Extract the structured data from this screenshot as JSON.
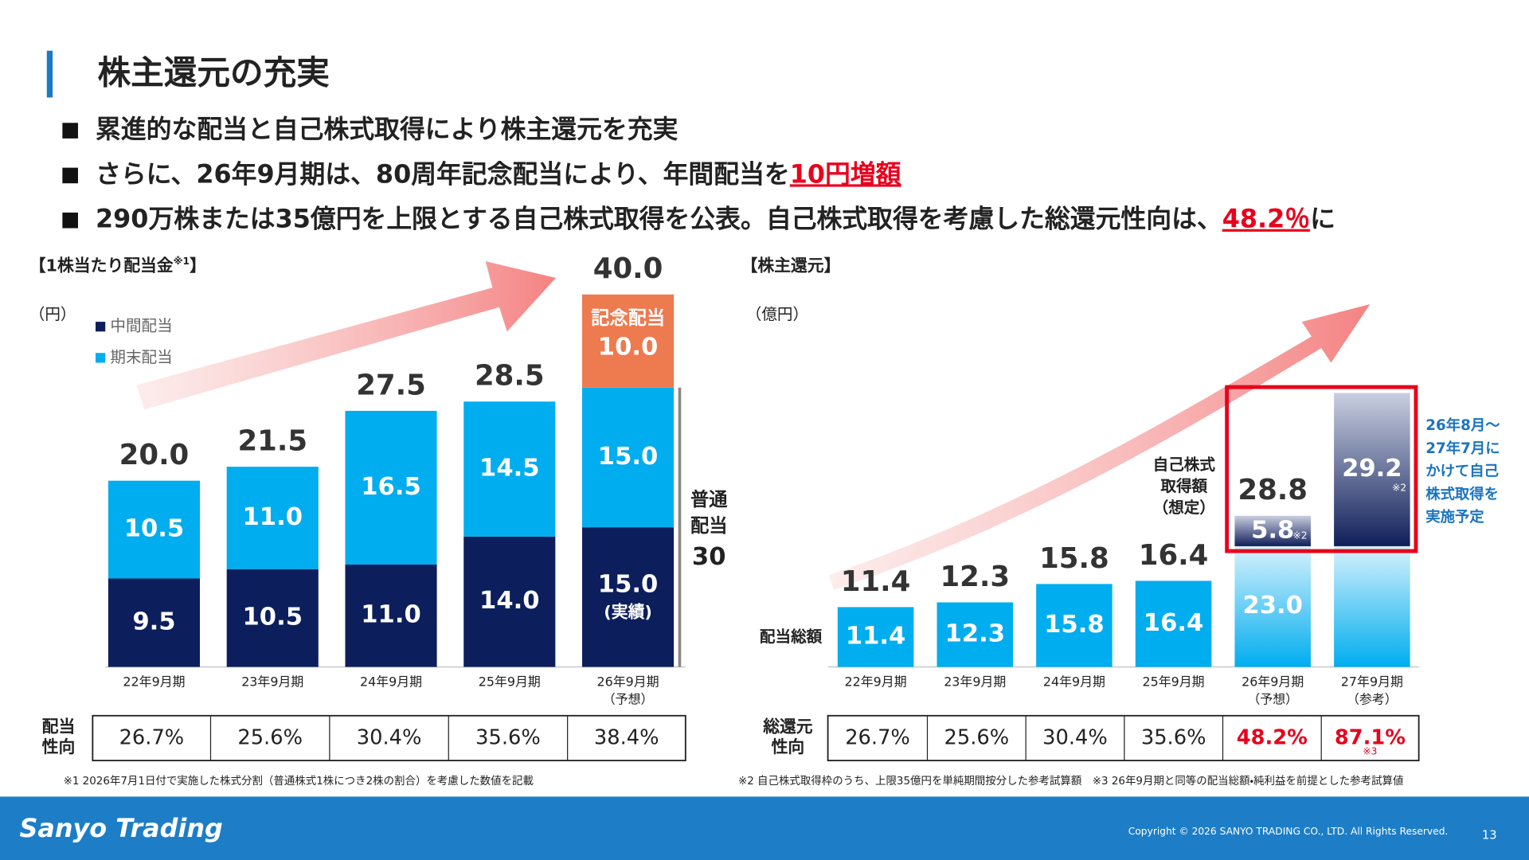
{
  "slide": {
    "title": "株主還元の充実",
    "bullets": [
      [
        {
          "text": "累進的な配当と自己株式取得により株主還元を充実"
        }
      ],
      [
        {
          "text": "さらに、26年9月期は、80周年記念配当により、年間配当を"
        },
        {
          "text": "10円増額",
          "highlight": true
        }
      ],
      [
        {
          "text": "290万株または35億円を上限とする自己株式取得を公表。自己株式取得を考慮した総還元性向は、"
        },
        {
          "text": "48.2％",
          "highlight": true
        },
        {
          "text": "に"
        }
      ]
    ],
    "footnotes": [
      "※1 2026年7月1日付で実施した株式分割（普通株式1株につき2株の割合）を考慮した数値を記載",
      "※2 自己株式取得枠のうち、上限35億円を単純期間按分した参考試算額　※3 26年9月期と同等の配当総額・純利益を前提とした参考試算値"
    ],
    "footer": {
      "logo": "Sanyo Trading",
      "copyright": "Copyright © 2026 SANYO TRADING CO., LTD. All Rights Reserved.",
      "page": "13"
    }
  },
  "chart_data": [
    {
      "type": "stacked-bar",
      "title": [
        "【1株当たり配当金",
        "※1",
        "】"
      ],
      "unit": "（円）",
      "legend": "upper-left",
      "categories": [
        "22年9月期",
        "23年9月期",
        "24年9月期",
        "25年9月期",
        "26年9月期"
      ],
      "category_notes": [
        null,
        null,
        null,
        null,
        "（予想）"
      ],
      "series": [
        {
          "name": "中間配当",
          "color": "#0c1f5c",
          "values": [
            9.5,
            10.5,
            11.0,
            14.0,
            15.0
          ],
          "value_labels": [
            "9.5",
            "10.5",
            "11.0",
            "14.0",
            "15.0"
          ],
          "value_notes": [
            null,
            null,
            null,
            null,
            "(実績)"
          ]
        },
        {
          "name": "期末配当",
          "color": "#00adef",
          "values": [
            10.5,
            11.0,
            16.5,
            14.5,
            15.0
          ],
          "value_labels": [
            "10.5",
            "11.0",
            "16.5",
            "14.5",
            "15.0"
          ]
        },
        {
          "name": "記念配当",
          "color": "#ee7a4f",
          "name_position": "in-bar",
          "values": [
            null,
            null,
            null,
            null,
            10.0
          ],
          "value_labels": [
            null,
            null,
            null,
            null,
            "10.0"
          ]
        }
      ],
      "totals": [
        20.0,
        21.5,
        27.5,
        28.5,
        40.0
      ],
      "total_labels": [
        "20.0",
        "21.5",
        "27.5",
        "28.5",
        "40.0"
      ],
      "bracket": {
        "label": "普通\n配当",
        "value": 30
      },
      "ratio_row": {
        "label": "配当\n性向",
        "values": [
          "26.7%",
          "25.6%",
          "30.4%",
          "35.6%",
          "38.4%"
        ]
      }
    },
    {
      "type": "stacked-bar",
      "title": [
        "【株主還元】"
      ],
      "unit": "（億円）",
      "legend": "inline",
      "categories": [
        "22年9月期",
        "23年9月期",
        "24年9月期",
        "25年9月期",
        "26年9月期",
        "27年9月期"
      ],
      "category_notes": [
        null,
        null,
        null,
        null,
        "（予想）",
        "（参考）"
      ],
      "series": [
        {
          "name": "配当総額",
          "color": "#00adef",
          "values": [
            11.4,
            12.3,
            15.8,
            16.4,
            23.0,
            23.0
          ],
          "value_labels": [
            "11.4",
            "12.3",
            "15.8",
            "16.4",
            "23.0",
            null
          ]
        },
        {
          "name": "自己株式\n取得額\n（想定）",
          "color": "#1c2c6e",
          "values": [
            null,
            null,
            null,
            null,
            5.8,
            29.2
          ],
          "value_notes": [
            null,
            null,
            null,
            null,
            "※2",
            "※2"
          ]
        }
      ],
      "totals": [
        11.4,
        12.3,
        15.8,
        16.4,
        28.8,
        null
      ],
      "highlight_categories": [
        4,
        5
      ],
      "annotation": "26年8月～\n27年7月に\nかけて自己\n株式取得を\n実施予定",
      "ratio_row": {
        "label": "総還元\n性向",
        "values": [
          "26.7%",
          "25.6%",
          "30.4%",
          "35.6%",
          "48.2%",
          "87.1%"
        ],
        "colors": [
          "#222222",
          "#222222",
          "#222222",
          "#222222",
          "#e8001c",
          "#e8001c"
        ],
        "notes": [
          null,
          null,
          null,
          null,
          null,
          "※3"
        ]
      }
    }
  ]
}
